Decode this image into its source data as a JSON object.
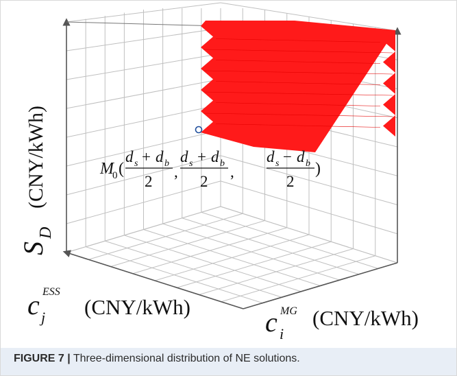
{
  "figure": {
    "caption_label": "FIGURE 7 |",
    "caption_text": " Three-dimensional distribution of NE solutions."
  },
  "axes": {
    "z": {
      "symbol": "S",
      "subscript": "D",
      "unit": "(CNY/kWh)"
    },
    "left": {
      "symbol": "c",
      "subscript": "j",
      "superscript": "ESS",
      "unit": "(CNY/kWh)"
    },
    "right": {
      "symbol": "c",
      "subscript": "i",
      "superscript": "MG",
      "unit": "(CNY/kWh)"
    }
  },
  "annotation": {
    "point_name": "M",
    "point_sub": "0",
    "open_paren": "(",
    "close_paren": ")",
    "comma": ",",
    "f1_num": "d",
    "f1_num_sub_a": "s",
    "f1_op": "+",
    "f1_num_sub_b": "b",
    "f2_op": "+",
    "f3_op": "−",
    "den": "2"
  },
  "colors": {
    "solution_region": "#ff1a1a",
    "grid": "#bfbfbf",
    "axis": "#555555",
    "marker": "#1f4e9c",
    "caption_band": "#e8eef6"
  },
  "chart_data": {
    "type": "scatter",
    "dimensions": 3,
    "description_series": "NE solutions",
    "marker_point": "M0((ds+db)/2, (ds+db)/2, (ds-db)/2)",
    "grid": true
  }
}
